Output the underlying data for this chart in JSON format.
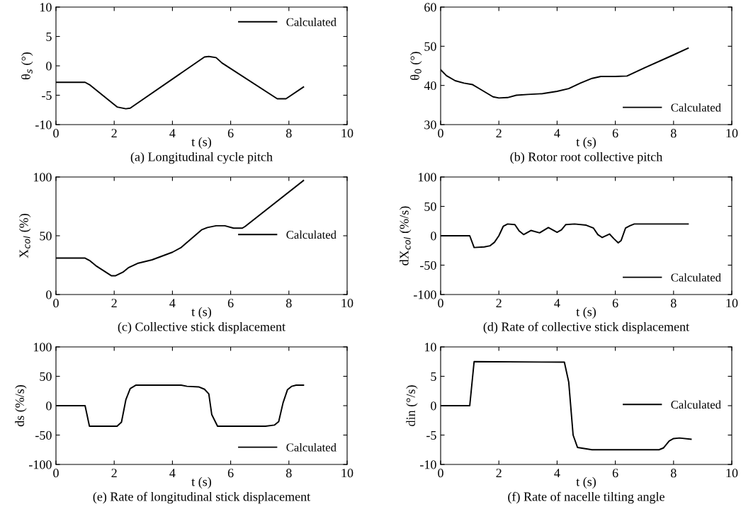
{
  "chart_data": [
    {
      "type": "line",
      "title": "(a) Longitudinal cycle pitch",
      "xlabel": "t (s)",
      "ylabel": "θ$_{s}$ (°)",
      "xlim": [
        0,
        10
      ],
      "xticks": [
        0,
        2,
        4,
        6,
        8,
        10
      ],
      "ylim": [
        -10,
        10
      ],
      "yticks": [
        -10,
        -5,
        0,
        5,
        10
      ],
      "legend": "top right",
      "grid": false,
      "series": [
        {
          "name": "Calculated",
          "color": "#000000",
          "x": [
            0,
            1,
            1.15,
            2.1,
            2.4,
            2.55,
            5.1,
            5.25,
            5.5,
            5.7,
            7.6,
            7.9,
            8.5
          ],
          "values": [
            -2.8,
            -2.8,
            -3.2,
            -7,
            -7.3,
            -7.2,
            1.5,
            1.6,
            1.4,
            0.5,
            -5.6,
            -5.6,
            -3.6
          ]
        }
      ]
    },
    {
      "type": "line",
      "title": "(b) Rotor root collective pitch",
      "xlabel": "t (s)",
      "ylabel": "θ$_{0}$ (°)",
      "xlim": [
        0,
        10
      ],
      "xticks": [
        0,
        2,
        4,
        6,
        8,
        10
      ],
      "ylim": [
        30,
        60
      ],
      "yticks": [
        30,
        40,
        50,
        60
      ],
      "legend": "bottom right",
      "grid": false,
      "series": [
        {
          "name": "Calculated",
          "color": "#000000",
          "x": [
            0,
            0.2,
            0.5,
            0.8,
            1.1,
            1.3,
            1.8,
            2,
            2.3,
            2.6,
            3,
            3.5,
            4,
            4.4,
            4.8,
            5.2,
            5.5,
            6,
            6.4,
            7,
            8,
            8.5
          ],
          "values": [
            44,
            42.5,
            41.2,
            40.6,
            40.2,
            39.3,
            37.1,
            36.8,
            36.9,
            37.5,
            37.7,
            37.9,
            38.5,
            39.2,
            40.6,
            41.8,
            42.3,
            42.3,
            42.4,
            44.5,
            47.8,
            49.5
          ]
        }
      ]
    },
    {
      "type": "line",
      "title": "(c) Collective stick displacement",
      "xlabel": "t (s)",
      "ylabel": "X$_{col}$ (%)",
      "xlim": [
        0,
        10
      ],
      "xticks": [
        0,
        2,
        4,
        6,
        8,
        10
      ],
      "ylim": [
        0,
        100
      ],
      "yticks": [
        0,
        50,
        100
      ],
      "legend": "right",
      "grid": false,
      "series": [
        {
          "name": "Calculated",
          "color": "#000000",
          "x": [
            0,
            1,
            1.15,
            1.4,
            1.9,
            2.05,
            2.3,
            2.5,
            2.8,
            3.3,
            4,
            4.3,
            5,
            5.2,
            5.5,
            5.8,
            6.1,
            6.4,
            6.5,
            8.5
          ],
          "values": [
            31,
            31,
            29,
            24,
            16,
            16,
            19,
            23,
            26.5,
            29.5,
            36,
            40,
            55,
            57,
            58.5,
            58.5,
            56.5,
            56.5,
            58,
            97
          ]
        }
      ]
    },
    {
      "type": "line",
      "title": "(d) Rate of collective stick displacement",
      "xlabel": "t (s)",
      "ylabel": "dX$_{col}$ (%/s)",
      "xlim": [
        0,
        10
      ],
      "xticks": [
        0,
        2,
        4,
        6,
        8,
        10
      ],
      "ylim": [
        -100,
        100
      ],
      "yticks": [
        -100,
        -50,
        0,
        50,
        100
      ],
      "legend": "bottom right",
      "grid": false,
      "series": [
        {
          "name": "Calculated",
          "color": "#000000",
          "x": [
            0,
            1,
            1.15,
            1.5,
            1.7,
            1.85,
            2.0,
            2.15,
            2.3,
            2.55,
            2.7,
            2.85,
            3.1,
            3.4,
            3.7,
            4.0,
            4.15,
            4.3,
            4.6,
            5.0,
            5.25,
            5.4,
            5.55,
            5.8,
            5.95,
            6.1,
            6.2,
            6.35,
            6.5,
            6.65,
            8.5
          ],
          "values": [
            0,
            0,
            -20,
            -19,
            -17,
            -11,
            0,
            16,
            20,
            19,
            8,
            2,
            9,
            5,
            14,
            6,
            10,
            19,
            20,
            18,
            13,
            2,
            -3,
            3,
            -5,
            -12,
            -8,
            13,
            17,
            20,
            20
          ]
        }
      ]
    },
    {
      "type": "line",
      "title": "(e) Rate of longitudinal stick displacement",
      "xlabel": "t (s)",
      "ylabel": "ds (%/s)",
      "xlim": [
        0,
        10
      ],
      "xticks": [
        0,
        2,
        4,
        6,
        8,
        10
      ],
      "ylim": [
        -100,
        100
      ],
      "yticks": [
        -100,
        -50,
        0,
        50,
        100
      ],
      "legend": "bottom right",
      "grid": false,
      "series": [
        {
          "name": "Calculated",
          "color": "#000000",
          "x": [
            0,
            1,
            1.15,
            2.1,
            2.25,
            2.4,
            2.55,
            2.75,
            4.3,
            4.5,
            4.9,
            5.1,
            5.25,
            5.35,
            5.55,
            7.2,
            7.5,
            7.65,
            7.8,
            7.95,
            8.1,
            8.25,
            8.5
          ],
          "values": [
            0,
            0,
            -35,
            -35,
            -28,
            10,
            29,
            35,
            35,
            33,
            32,
            28,
            20,
            -15,
            -35,
            -35,
            -33,
            -27,
            5,
            27,
            33,
            35,
            35
          ]
        }
      ]
    },
    {
      "type": "line",
      "title": "(f) Rate of nacelle tilting angle",
      "xlabel": "t (s)",
      "ylabel": "din (°/s)",
      "xlim": [
        0,
        10
      ],
      "xticks": [
        0,
        2,
        4,
        6,
        8,
        10
      ],
      "ylim": [
        -10,
        10
      ],
      "yticks": [
        -10,
        -5,
        0,
        5,
        10
      ],
      "legend": "right",
      "grid": false,
      "series": [
        {
          "name": "Calculated",
          "color": "#000000",
          "x": [
            0,
            1,
            1.15,
            4.25,
            4.4,
            4.55,
            4.7,
            5.2,
            7.5,
            7.65,
            7.85,
            8,
            8.2,
            8.6
          ],
          "values": [
            0,
            0,
            7.5,
            7.4,
            4,
            -5,
            -7.1,
            -7.5,
            -7.5,
            -7.2,
            -6,
            -5.6,
            -5.5,
            -5.7
          ]
        }
      ]
    }
  ]
}
